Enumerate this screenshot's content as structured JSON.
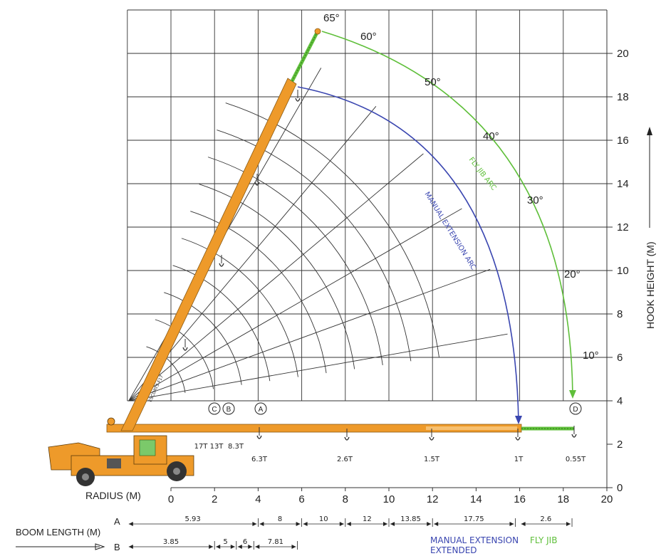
{
  "chart_data": {
    "type": "diagram",
    "x_axis": {
      "label": "RADIUS (M)",
      "ticks": [
        0,
        2,
        4,
        6,
        8,
        10,
        12,
        14,
        16,
        18,
        20
      ],
      "range": [
        0,
        20
      ]
    },
    "y_axis": {
      "label": "HOOK HEIGHT (M)",
      "ticks": [
        0,
        2,
        4,
        6,
        8,
        10,
        12,
        14,
        16,
        18,
        20
      ],
      "range": [
        0,
        22
      ]
    },
    "angles": [
      {
        "label": "10°",
        "deg": 10
      },
      {
        "label": "20°",
        "deg": 20
      },
      {
        "label": "30°",
        "deg": 30
      },
      {
        "label": "40°",
        "deg": 40
      },
      {
        "label": "50°",
        "deg": 50
      },
      {
        "label": "60°",
        "deg": 60
      },
      {
        "label": "65°",
        "deg": 65
      }
    ],
    "arc_labels": {
      "manual": "MANUAL EXTENSION ARC",
      "fly": "FLY JIB ARC"
    },
    "load_points": [
      {
        "label": "17T",
        "x": 1.3
      },
      {
        "label": "13T",
        "x": 2.0
      },
      {
        "label": "8.3T",
        "x": 2.9
      },
      {
        "label": "6.3T",
        "x": 4.0
      },
      {
        "label": "2.6T",
        "x": 8.0
      },
      {
        "label": "1.5T",
        "x": 11.9
      },
      {
        "label": "1T",
        "x": 15.8
      },
      {
        "label": "0.55T",
        "x": 18.5
      }
    ],
    "markers": [
      {
        "label": "C",
        "x": 2.0
      },
      {
        "label": "B",
        "x": 2.7
      },
      {
        "label": "A",
        "x": 4.0
      },
      {
        "label": "D",
        "x": 18.4
      }
    ],
    "boom_length_label": "BOOM LENGTH (M)",
    "row_a": {
      "label": "A",
      "segments": [
        {
          "label": "5.93",
          "from": -2.0,
          "to": 4.0
        },
        {
          "label": "8",
          "from": 4.0,
          "to": 6.0
        },
        {
          "label": "10",
          "from": 6.0,
          "to": 8.0
        },
        {
          "label": "12",
          "from": 8.0,
          "to": 10.0
        },
        {
          "label": "13.85",
          "from": 10.0,
          "to": 12.0
        },
        {
          "label": "17.75",
          "from": 12.0,
          "to": 15.8
        },
        {
          "label": "2.6",
          "from": 16.0,
          "to": 18.4
        }
      ]
    },
    "row_b": {
      "label": "B",
      "segments": [
        {
          "label": "3.85",
          "from": -2.0,
          "to": 2.0
        },
        {
          "label": "5",
          "from": 2.0,
          "to": 3.0
        },
        {
          "label": "6",
          "from": 3.0,
          "to": 3.8
        },
        {
          "label": "7.81",
          "from": 3.8,
          "to": 5.8
        }
      ]
    },
    "legend": [
      {
        "label": "MANUAL EXTENSION",
        "color": "#3a46b0"
      },
      {
        "label": "EXTENDED",
        "color": "#3a46b0"
      },
      {
        "label": "FLY JIB",
        "color": "#5fbf3a"
      }
    ],
    "colors": {
      "boom": "#ee9a2a",
      "manual_arc": "#3a46b0",
      "fly_arc": "#5fbf3a",
      "grid": "#222222"
    },
    "boom_text": "ESCORTS F17"
  }
}
